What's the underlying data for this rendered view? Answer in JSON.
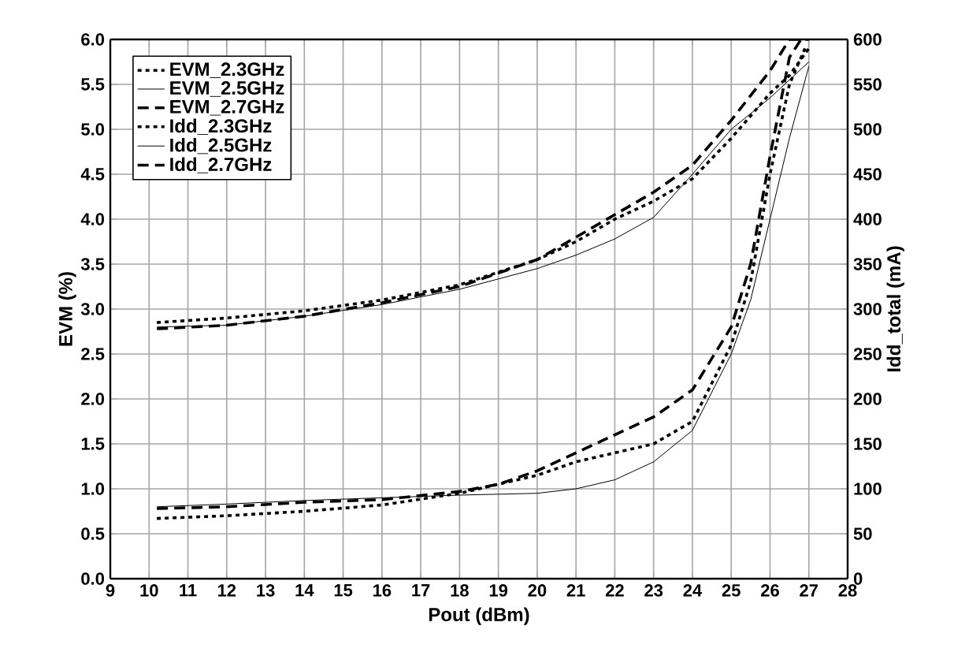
{
  "chart_data": {
    "type": "line",
    "xlabel": "Pout (dBm)",
    "ylabel": "EVM (%)",
    "y2label": "Idd_total (mA)",
    "xlim": [
      9,
      28
    ],
    "xticks": [
      9,
      10,
      11,
      12,
      13,
      14,
      15,
      16,
      17,
      18,
      19,
      20,
      21,
      22,
      23,
      24,
      25,
      26,
      27,
      28
    ],
    "ylim": [
      0,
      6
    ],
    "yticks": [
      {
        "value": 0,
        "label": "0.0"
      },
      {
        "value": 0.5,
        "label": "0.5"
      },
      {
        "value": 1,
        "label": "1.0"
      },
      {
        "value": 1.5,
        "label": "1.5"
      },
      {
        "value": 2,
        "label": "2.0"
      },
      {
        "value": 2.5,
        "label": "2.5"
      },
      {
        "value": 3,
        "label": "3.0"
      },
      {
        "value": 3.5,
        "label": "3.5"
      },
      {
        "value": 4,
        "label": "4.0"
      },
      {
        "value": 4.5,
        "label": "4.5"
      },
      {
        "value": 5,
        "label": "5.0"
      },
      {
        "value": 5.5,
        "label": "5.5"
      },
      {
        "value": 6,
        "label": "6.0"
      }
    ],
    "y2lim": [
      0,
      600
    ],
    "y2ticks": [
      0,
      50,
      100,
      150,
      200,
      250,
      300,
      350,
      400,
      450,
      500,
      550,
      600
    ],
    "grid": true,
    "legend": "top left",
    "marker": "none",
    "series": [
      {
        "name": "EVM_2.3GHz",
        "color": "#000000",
        "line_style": "dotted",
        "x": [
          10.2,
          12,
          14,
          16,
          18,
          19,
          20,
          21,
          22,
          23,
          24,
          25,
          25.5,
          26,
          26.5,
          26.9
        ],
        "values": [
          0.67,
          0.7,
          0.75,
          0.82,
          0.95,
          1.05,
          1.15,
          1.3,
          1.4,
          1.5,
          1.75,
          2.6,
          3.3,
          4.5,
          5.5,
          5.9
        ]
      },
      {
        "name": "EVM_2.5GHz",
        "color": "#000000",
        "line_style": "solid",
        "x": [
          10.2,
          12,
          14,
          16,
          18,
          20,
          21,
          22,
          23,
          24,
          25,
          25.5,
          26,
          26.5,
          27
        ],
        "values": [
          0.8,
          0.83,
          0.87,
          0.9,
          0.93,
          0.95,
          1.0,
          1.1,
          1.3,
          1.65,
          2.5,
          3.1,
          4.0,
          4.9,
          5.7
        ]
      },
      {
        "name": "EVM_2.7GHz",
        "color": "#000000",
        "line_style": "dashed",
        "x": [
          10.2,
          12,
          14,
          16,
          18,
          19,
          20,
          21,
          22,
          23,
          24,
          25,
          25.5,
          26,
          26.5,
          26.8
        ],
        "values": [
          0.78,
          0.8,
          0.85,
          0.88,
          0.97,
          1.05,
          1.2,
          1.4,
          1.6,
          1.8,
          2.1,
          2.8,
          3.5,
          4.7,
          5.8,
          6.0
        ]
      },
      {
        "name": "Idd_2.3GHz",
        "color": "#000000",
        "line_style": "dotted",
        "axis": "y2",
        "x": [
          10.2,
          12,
          14,
          16,
          18,
          20,
          21,
          22,
          23,
          24,
          25,
          26,
          26.5,
          27
        ],
        "values": [
          285,
          290,
          298,
          310,
          327,
          355,
          375,
          400,
          420,
          445,
          490,
          540,
          560,
          590
        ]
      },
      {
        "name": "Idd_2.5GHz",
        "color": "#000000",
        "line_style": "solid",
        "axis": "y2",
        "x": [
          10.2,
          12,
          14,
          16,
          18,
          20,
          21,
          22,
          23,
          24,
          25,
          26,
          27
        ],
        "values": [
          280,
          282,
          292,
          305,
          322,
          345,
          360,
          378,
          402,
          450,
          500,
          535,
          575
        ]
      },
      {
        "name": "Idd_2.7GHz",
        "color": "#000000",
        "line_style": "dashed",
        "axis": "y2",
        "x": [
          10.2,
          12,
          14,
          16,
          18,
          20,
          21,
          22,
          23,
          24,
          25,
          26,
          26.5,
          27
        ],
        "values": [
          278,
          282,
          292,
          307,
          325,
          355,
          380,
          405,
          430,
          460,
          510,
          565,
          600,
          600
        ]
      }
    ]
  }
}
